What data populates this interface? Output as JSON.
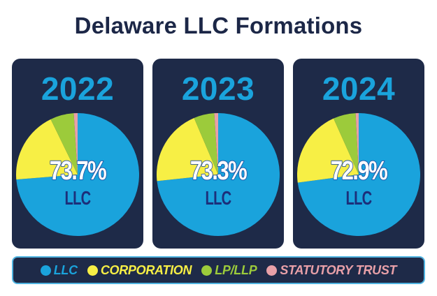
{
  "title": "Delaware LLC Formations",
  "colors": {
    "llc": "#1aa3dc",
    "corporation": "#f7ef45",
    "lp_llp": "#9ccb3b",
    "statutory_trust": "#e8a0a8",
    "card_bg": "#1e2a48",
    "title": "#1c2747"
  },
  "cards": [
    {
      "year": "2022",
      "pct_label": "73.7%",
      "sub_label": "LLC"
    },
    {
      "year": "2023",
      "pct_label": "73.3%",
      "sub_label": "LLC"
    },
    {
      "year": "2024",
      "pct_label": "72.9%",
      "sub_label": "LLC"
    }
  ],
  "legend": [
    {
      "label": "LLC",
      "color": "#1aa3dc"
    },
    {
      "label": "CORPORATION",
      "color": "#f7ef45"
    },
    {
      "label": "LP/LLP",
      "color": "#9ccb3b"
    },
    {
      "label": "STATUTORY TRUST",
      "color": "#e8a0a8"
    }
  ],
  "chart_data": [
    {
      "type": "pie",
      "title": "2022",
      "categories": [
        "LLC",
        "Corporation",
        "LP/LLP",
        "Statutory Trust"
      ],
      "values": [
        73.7,
        19.1,
        6.2,
        1.0
      ],
      "annotation": "73.7% LLC",
      "start_angle": "12 o'clock, clockwise",
      "legend_position": "bottom"
    },
    {
      "type": "pie",
      "title": "2023",
      "categories": [
        "LLC",
        "Corporation",
        "LP/LLP",
        "Statutory Trust"
      ],
      "values": [
        73.3,
        20.3,
        5.4,
        1.0
      ],
      "annotation": "73.3% LLC",
      "start_angle": "12 o'clock, clockwise",
      "legend_position": "bottom"
    },
    {
      "type": "pie",
      "title": "2024",
      "categories": [
        "LLC",
        "Corporation",
        "LP/LLP",
        "Statutory Trust"
      ],
      "values": [
        72.9,
        20.4,
        5.9,
        0.8
      ],
      "annotation": "72.9% LLC",
      "start_angle": "12 o'clock, clockwise",
      "legend_position": "bottom"
    }
  ]
}
